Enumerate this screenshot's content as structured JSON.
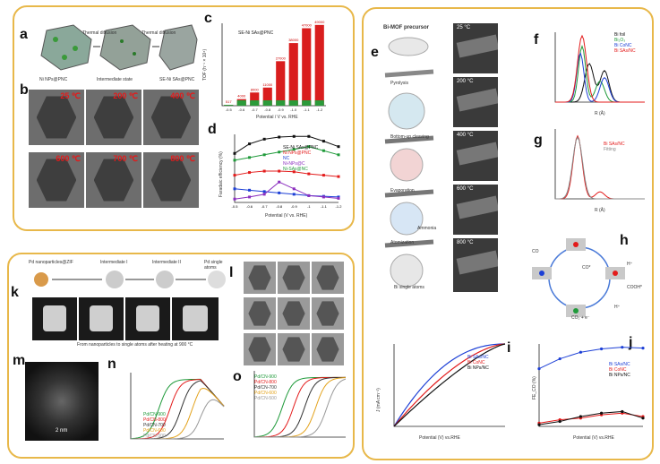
{
  "labels": {
    "a": "a",
    "b": "b",
    "c": "c",
    "d": "d",
    "e": "e",
    "f": "f",
    "g": "g",
    "h": "h",
    "i": "i",
    "j": "j",
    "k": "k",
    "l": "l",
    "m": "m",
    "n": "n",
    "o": "o"
  },
  "panel_a": {
    "captions": [
      "Ni NPs@PNC",
      "Intermediate state",
      "SE-Ni SAs@PNC"
    ],
    "arrows": [
      "Thermal diffusion",
      "Thermal diffusion"
    ]
  },
  "panel_b": {
    "temps": [
      "25 ℃",
      "200 ℃",
      "400 ℃",
      "600 ℃",
      "700 ℃",
      "800 ℃"
    ]
  },
  "panel_c": {
    "legend": "SE-Ni SAs@PNC",
    "ylabel": "TOF (h⁻¹ × 10⁴)",
    "xlabel": "Potential / V vs. RHE",
    "categories": [
      "-0.5",
      "-0.6",
      "-0.7",
      "-0.8",
      "-0.9",
      "-1.0",
      "-1.1",
      "-1.2"
    ],
    "values": [
      517,
      4000,
      8000,
      11000,
      27000,
      38000,
      47000,
      49000
    ],
    "bar_labels": [
      "517",
      "4000",
      "8000",
      "11000",
      "27000",
      "38000",
      "47000",
      "49000"
    ]
  },
  "panel_d": {
    "ylabel": "Faradaic efficiency (%)",
    "xlabel": "Potential (V vs. RHE)",
    "x": [
      -0.5,
      -0.6,
      -0.7,
      -0.8,
      -0.9,
      -1.0,
      -1.1,
      -1.2
    ],
    "series": [
      {
        "name": "SE-Ni SAs@PNC",
        "color": "#111111",
        "values": [
          72,
          86,
          93,
          96,
          97,
          97,
          90,
          82
        ]
      },
      {
        "name": "Ni NPs@PNC",
        "color": "#e31b1b",
        "values": [
          40,
          44,
          46,
          46,
          45,
          42,
          40,
          38
        ]
      },
      {
        "name": "NC",
        "color": "#1c3fd6",
        "values": [
          20,
          18,
          16,
          14,
          12,
          10,
          9,
          8
        ]
      },
      {
        "name": "Ni-NPs@C",
        "color": "#8b2fbf",
        "values": [
          5,
          8,
          12,
          30,
          20,
          10,
          8,
          6
        ]
      },
      {
        "name": "Ni-SAs@NC",
        "color": "#1f9a3a",
        "values": [
          62,
          66,
          70,
          74,
          78,
          82,
          76,
          70
        ]
      }
    ]
  },
  "panel_e": {
    "title": "Bi-MOF precursor",
    "steps": [
      "Pyrolysis",
      "Bottom-up cleaving",
      "Evaporation",
      "Atomization"
    ],
    "steps_extra": [
      "Ammonia",
      "Bi single atoms"
    ],
    "temps": [
      "25 °C",
      "200 °C",
      "400 °C",
      "600 °C",
      "800 °C"
    ]
  },
  "panel_f": {
    "ylabel": "|FT k²χ(k)|",
    "xlabel": "R (Å)",
    "legend": [
      "Bi foil",
      "Bi₂O₃",
      "Bi CoNC",
      "Bi SAs/NC"
    ],
    "colors": [
      "#111111",
      "#1f9a3a",
      "#1c3fd6",
      "#e31b1b"
    ]
  },
  "panel_g": {
    "ylabel": "|FT k²χ(k)|",
    "xlabel": "R (Å)",
    "legend": [
      "Bi SAs/NC",
      "Fitting"
    ],
    "colors": [
      "#e31b1b",
      "#888888"
    ]
  },
  "panel_h": {
    "species": [
      "CO",
      "CO*",
      "H⁺",
      "COOH*",
      "H⁺",
      "CO₂ + e⁻"
    ]
  },
  "panel_i": {
    "ylabel": "J (mA cm⁻²)",
    "xlabel": "Potential (V) vs.RHE",
    "legend": [
      "Bi SAs/NC",
      "Bi CoNC",
      "Bi NPs/NC"
    ],
    "colors": [
      "#1c3fd6",
      "#e31b1b",
      "#111111"
    ]
  },
  "panel_j": {
    "ylabel": "FE_CO (%)",
    "xlabel": "Potential (V) vs.RHE",
    "legend": [
      "Bi SAs/NC",
      "Bi CoNC",
      "Bi NPs/NC"
    ],
    "colors": [
      "#1c3fd6",
      "#e31b1b",
      "#111111"
    ]
  },
  "panel_k": {
    "stages": [
      "Pd nanoparticles@ZIF",
      "Intermediate I",
      "Intermediate II",
      "Pd single atoms"
    ],
    "caption": "From nanoparticles to single atoms after heating at 900 °C"
  },
  "panel_n": {
    "legend": [
      "Pd/CN-900",
      "Pd/CN-800",
      "Pd/CN-700",
      "Pd/CN-600",
      "Pd/CN-500"
    ],
    "colors": [
      "#1f9a3a",
      "#e31b1b",
      "#333333",
      "#e3a21b",
      "#999999"
    ]
  },
  "panel_o": {
    "legend": [
      "Pd/CN-900",
      "Pd/CN-800",
      "Pd/CN-700",
      "Pd/CN-600",
      "Pd/CN-500"
    ],
    "colors": [
      "#1f9a3a",
      "#e31b1b",
      "#333333",
      "#e3a21b",
      "#999999"
    ]
  },
  "panel_m": {
    "scale": "2 nm"
  }
}
